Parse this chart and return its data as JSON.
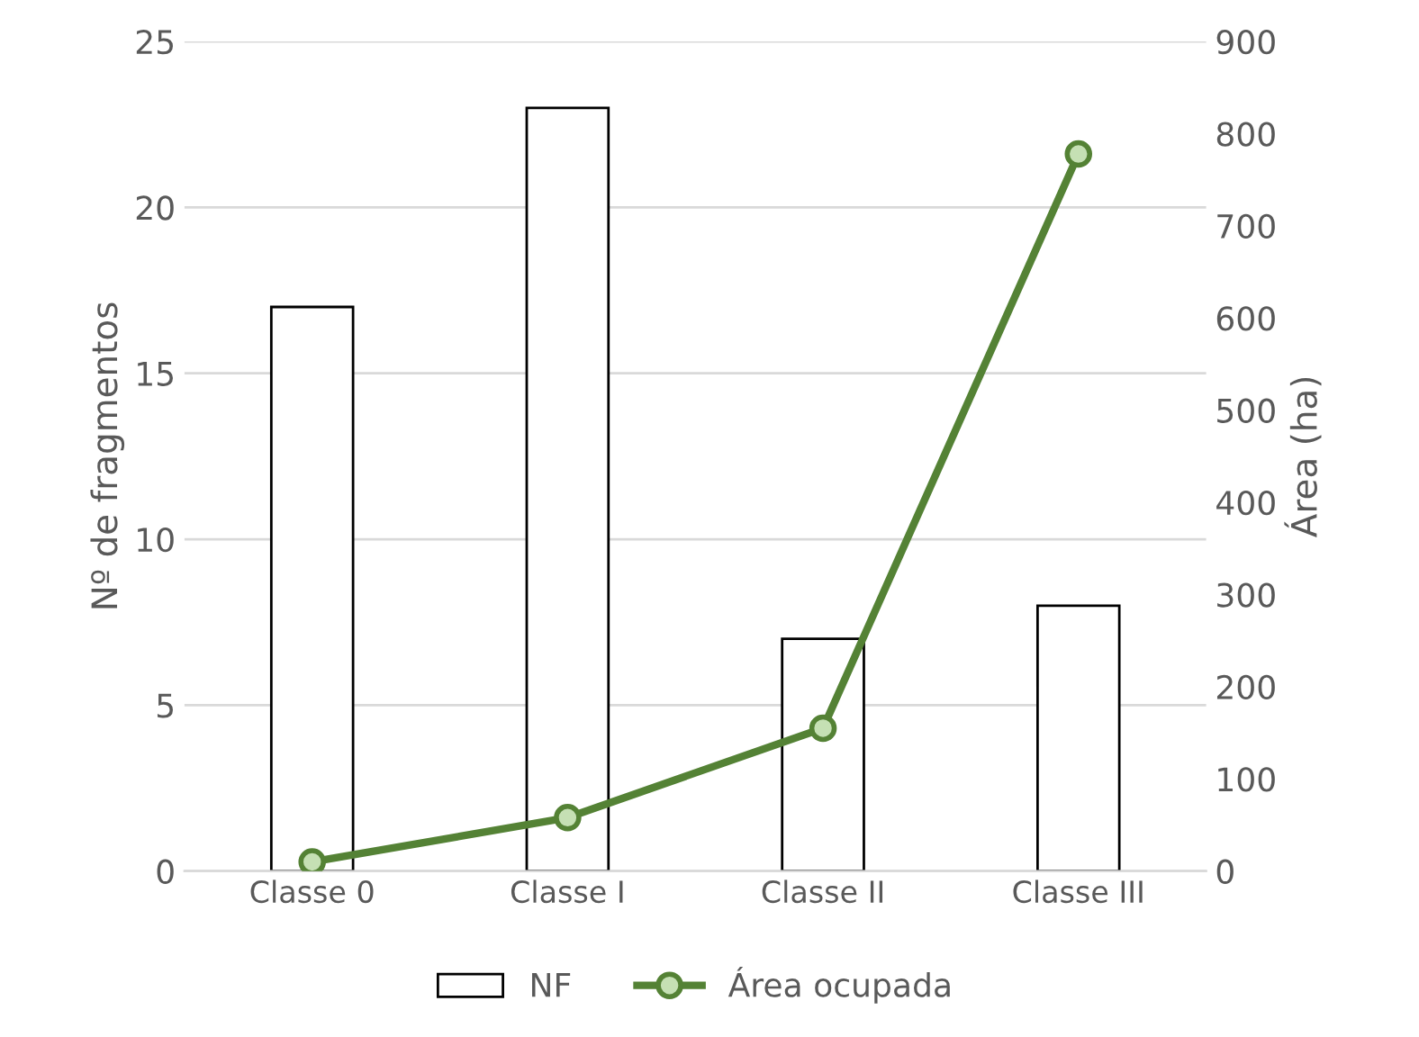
{
  "chart_data": {
    "type": "bar",
    "categories": [
      "Classe 0",
      "Classe I",
      "Classe II",
      "Classe III"
    ],
    "ylabel": "Nº de fragmentos",
    "y2label": "Área (ha)",
    "series": [
      {
        "name": "NF",
        "color": "#ffffff",
        "values": [
          17,
          23,
          7,
          8
        ]
      },
      {
        "name": "Área ocupada",
        "type": "line",
        "axis": "y2",
        "color": "#548235",
        "values": [
          10,
          58,
          155,
          778
        ]
      }
    ],
    "ylim": [
      0,
      25
    ],
    "yticks": [
      0,
      5,
      10,
      15,
      20,
      25
    ],
    "y2lim": [
      0,
      900
    ],
    "y2ticks": [
      0,
      100,
      200,
      300,
      400,
      500,
      600,
      700,
      800,
      900
    ],
    "grid": "y",
    "legend": "bottom",
    "marker": "circle"
  }
}
